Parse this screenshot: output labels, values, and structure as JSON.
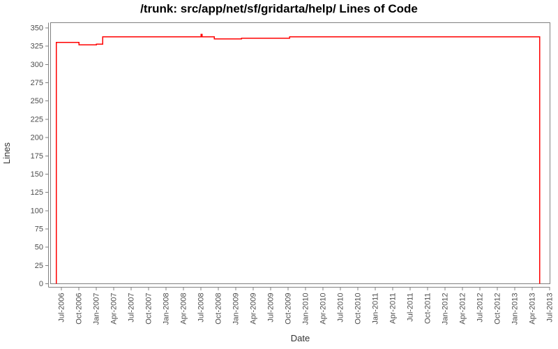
{
  "chart_data": {
    "type": "line",
    "line_style": "step-after",
    "title": "/trunk: src/app/net/sf/gridarta/help/ Lines of Code",
    "xlabel": "Date",
    "ylabel": "Lines",
    "ylim": [
      0,
      350
    ],
    "y_tick_interval": 25,
    "y_tick_labels": [
      "0",
      "25",
      "50",
      "75",
      "100",
      "125",
      "150",
      "175",
      "200",
      "225",
      "250",
      "275",
      "300",
      "325",
      "350"
    ],
    "x_tick_labels": [
      "Jul-2006",
      "Oct-2006",
      "Jan-2007",
      "Apr-2007",
      "Jul-2007",
      "Oct-2007",
      "Jan-2008",
      "Apr-2008",
      "Jul-2008",
      "Oct-2008",
      "Jan-2009",
      "Apr-2009",
      "Jul-2009",
      "Oct-2009",
      "Jan-2010",
      "Apr-2010",
      "Jul-2010",
      "Oct-2010",
      "Jan-2011",
      "Apr-2011",
      "Jul-2011",
      "Oct-2011",
      "Jan-2012",
      "Apr-2012",
      "Jul-2012",
      "Oct-2012",
      "Jan-2013",
      "Apr-2013",
      "Jul-2013"
    ],
    "grid": "off",
    "legend": "none",
    "series": [
      {
        "name": "Lines of Code",
        "color": "#ff0000",
        "starts_from_zero": true,
        "ends_at_zero": true,
        "points": [
          {
            "date": "2006-06-05",
            "loc": 330
          },
          {
            "date": "2006-10-01",
            "loc": 327
          },
          {
            "date": "2007-01-01",
            "loc": 328
          },
          {
            "date": "2007-02-05",
            "loc": 338
          },
          {
            "date": "2008-07-01",
            "loc": 341
          },
          {
            "date": "2008-07-08",
            "loc": 338
          },
          {
            "date": "2008-09-10",
            "loc": 335
          },
          {
            "date": "2009-02-01",
            "loc": 336
          },
          {
            "date": "2009-10-10",
            "loc": 338
          },
          {
            "date": "2013-05-10",
            "loc": 0
          }
        ]
      }
    ]
  },
  "colors": {
    "line": "#ff0000",
    "plot_border": "#808080",
    "axis_line": "#808080",
    "tick_mark": "#808080",
    "tick_label": "#4d4d4d",
    "axis_title": "#333333",
    "chart_title": "#000000",
    "background": "#ffffff"
  }
}
